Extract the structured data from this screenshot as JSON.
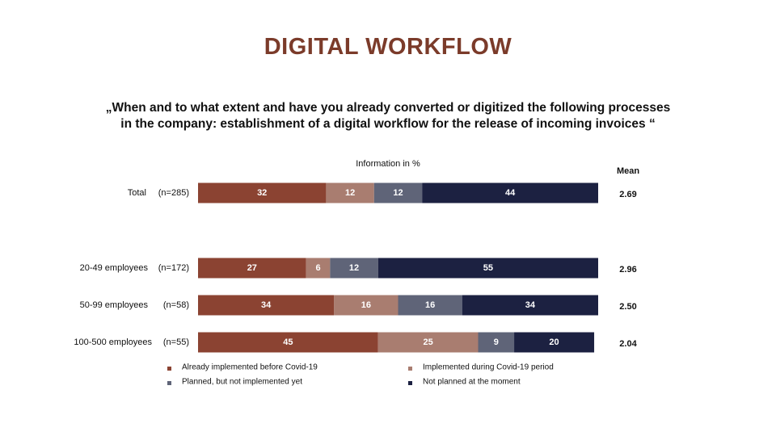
{
  "chart_data": {
    "type": "stacked-bar",
    "title": "DIGITAL WORKFLOW",
    "subtitle": "„When and to what extent and have you already converted or digitized the following processes in the company: establishment of a digital workflow for the release of incoming invoices “",
    "axis_note": "Information in %",
    "categories": [
      "Total",
      "20-49 employees",
      "50-99 employees",
      "100-500 employees"
    ],
    "sample_sizes": [
      "(n=285)",
      "(n=172)",
      "(n=58)",
      "(n=55)"
    ],
    "xlim": [
      0,
      100
    ],
    "series": [
      {
        "name": "Already implemented before Covid-19",
        "color": "#8b4332",
        "values": [
          32,
          27,
          34,
          45
        ]
      },
      {
        "name": "Implemented during Covid-19 period",
        "color": "#a97d70",
        "values": [
          12,
          6,
          16,
          25
        ]
      },
      {
        "name": "Planned, but not implemented yet",
        "color": "#5f6478",
        "values": [
          12,
          12,
          16,
          9
        ]
      },
      {
        "name": "Not planned at the moment",
        "color": "#1c2141",
        "values": [
          44,
          55,
          34,
          20
        ]
      }
    ],
    "mean_header": "Mean",
    "means": [
      2.69,
      2.96,
      2.5,
      2.04
    ],
    "mean_labels": [
      "2.69",
      "2.96",
      "2.50",
      "2.04"
    ]
  }
}
